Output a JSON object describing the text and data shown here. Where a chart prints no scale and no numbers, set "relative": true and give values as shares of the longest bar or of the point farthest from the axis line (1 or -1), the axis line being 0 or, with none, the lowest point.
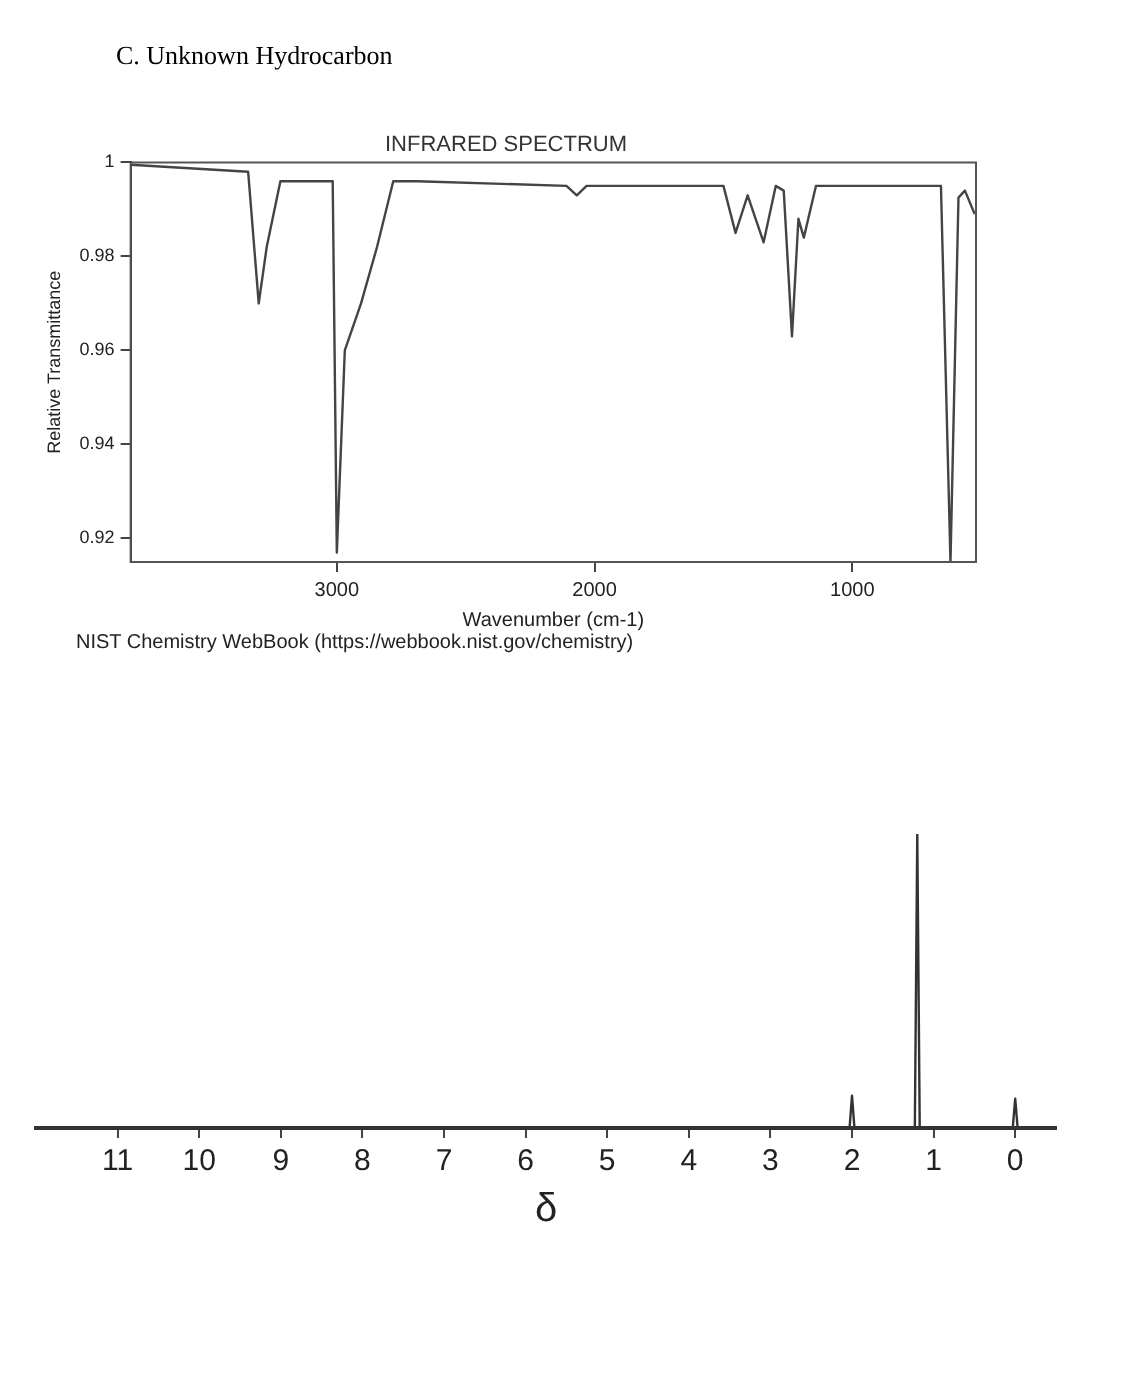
{
  "chart_data": [
    {
      "type": "line",
      "title": "C. Unknown Hydrocarbon",
      "subtitle": "INFRARED SPECTRUM",
      "xlabel": "Wavenumber (cm-1)",
      "ylabel": "Relative Transmittance",
      "x": [
        3800,
        3344,
        3303,
        3272,
        3219,
        3016,
        3000,
        2969,
        2906,
        2844,
        2781,
        2688,
        2109,
        2069,
        2031,
        1500,
        1453,
        1406,
        1344,
        1297,
        1266,
        1234,
        1209,
        1188,
        1141,
        656,
        619,
        588,
        563,
        525
      ],
      "series": [
        {
          "color": "#444444",
          "values": [
            0.9995,
            0.998,
            0.97,
            0.982,
            0.996,
            0.996,
            0.917,
            0.96,
            0.97,
            0.982,
            0.996,
            0.996,
            0.995,
            0.993,
            0.995,
            0.995,
            0.985,
            0.993,
            0.983,
            0.995,
            0.994,
            0.963,
            0.988,
            0.984,
            0.995,
            0.995,
            0.915,
            0.9925,
            0.994,
            0.989
          ]
        }
      ],
      "xlim": [
        3800,
        520
      ],
      "xticks": [
        3000,
        2000,
        1000
      ],
      "ylim": [
        0.915,
        1
      ],
      "yticks": [
        0.92,
        0.94,
        0.96,
        0.98,
        1
      ],
      "grid": false,
      "legend": false,
      "marker": "none",
      "annotations": [
        "NIST Chemistry WebBook (https://webbook.nist.gov/chemistry)"
      ]
    },
    {
      "type": "line",
      "xlabel": "δ",
      "relative": true,
      "tick_labels": "x",
      "x": [
        12,
        2.03,
        2.0,
        1.97,
        1.23,
        1.2,
        1.17,
        0.03,
        0,
        -0.03,
        -0.5
      ],
      "series": [
        {
          "color": "#333333",
          "values": [
            0,
            0,
            0.11,
            0,
            0,
            1,
            0,
            0,
            0.1,
            0,
            0
          ]
        }
      ],
      "xlim": [
        12,
        -0.5
      ],
      "xticks": [
        11,
        10,
        9,
        8,
        7,
        6,
        5,
        4,
        3,
        2,
        1,
        0
      ],
      "grid": false,
      "legend": false,
      "marker": "none"
    }
  ]
}
